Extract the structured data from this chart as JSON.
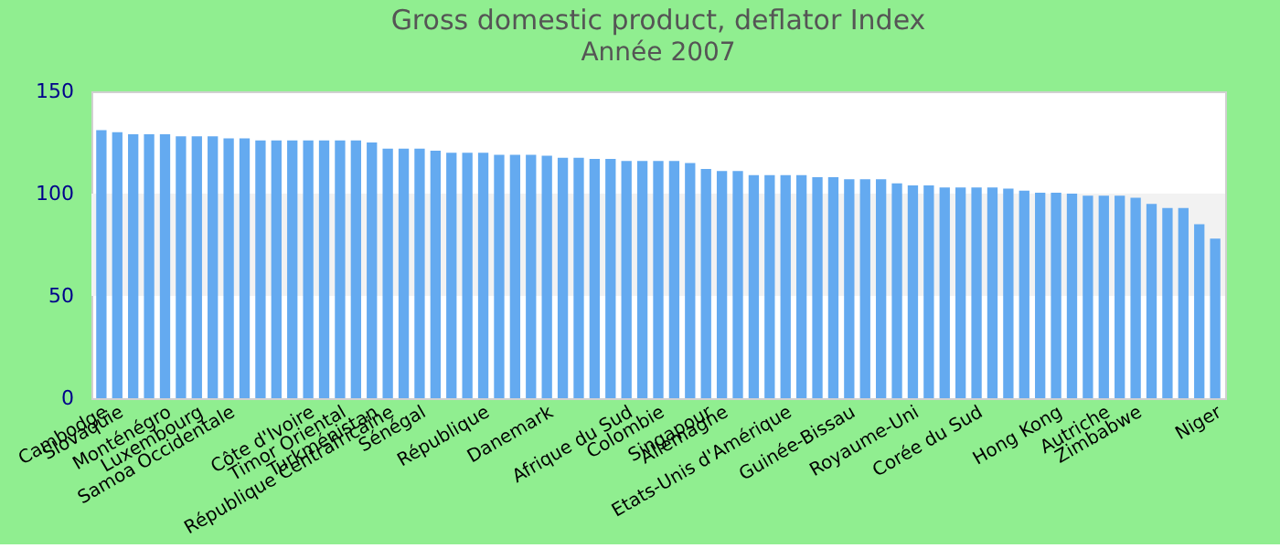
{
  "chart_data": {
    "type": "bar",
    "title": "Gross domestic product, deflator  Index",
    "subtitle": "Année 2007",
    "categories": [
      "Cambodge",
      "Slovaquie",
      null,
      null,
      "Monténégro",
      null,
      "Luxembourg",
      null,
      "Samoa Occidentale",
      null,
      null,
      null,
      null,
      "Côte d'Ivoire",
      null,
      "Timor Oriental",
      null,
      "Turkménistan",
      "République Centrafricaine",
      null,
      "Sénégal",
      null,
      null,
      null,
      "République",
      null,
      null,
      null,
      "Danemark",
      null,
      null,
      null,
      null,
      "Afrique du Sud",
      null,
      "Colombie",
      null,
      null,
      "Singapour",
      "Allemagne",
      null,
      null,
      null,
      "Etats-Unis d'Amérique",
      null,
      null,
      null,
      "Guinée-Bissau",
      null,
      null,
      null,
      "Royaume-Uni",
      null,
      null,
      null,
      "Corée du Sud",
      null,
      null,
      null,
      null,
      "Hong Kong",
      null,
      null,
      "Autriche",
      null,
      "Zimbabwe",
      null,
      null,
      null,
      null,
      "Niger"
    ],
    "values": [
      131,
      130,
      129,
      129,
      129,
      128,
      128,
      128,
      127,
      127,
      126,
      126,
      126,
      126,
      126,
      126,
      126,
      125,
      122,
      122,
      122,
      121,
      120,
      120,
      120,
      119,
      119,
      119,
      118.5,
      117.5,
      117.5,
      117,
      117,
      116,
      116,
      116,
      116,
      115,
      112,
      111,
      111,
      109,
      109,
      109,
      109,
      108,
      108,
      107,
      107,
      107,
      105,
      104,
      104,
      103,
      103,
      103,
      103,
      102.5,
      101.5,
      100.5,
      100.5,
      100,
      99,
      99,
      99,
      98,
      95,
      93,
      93,
      85,
      78
    ],
    "color": "#64aaf0",
    "ylim": [
      0,
      150
    ],
    "yticks": [
      0,
      50,
      100,
      150
    ],
    "grid": false,
    "bands": [
      {
        "axis": "y",
        "from": 50,
        "to": 100,
        "color": "#f2f2f2"
      }
    ]
  }
}
